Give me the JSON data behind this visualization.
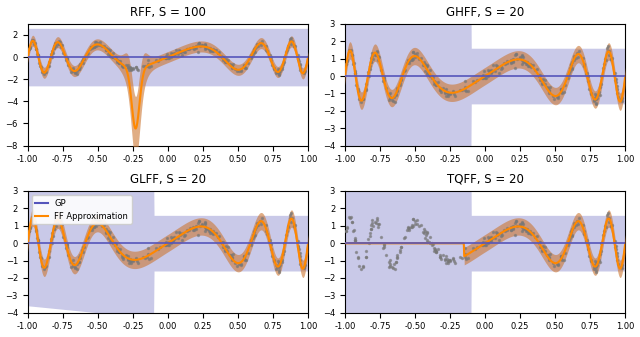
{
  "titles": [
    "RFF, S = 100",
    "GHFF, S = 20",
    "GLFF, S = 20",
    "TQFF, S = 20"
  ],
  "gp_color": "#5555bb",
  "ff_color": "#ff8800",
  "gp_fill_color": "#8888cc",
  "ff_fill_color": "#cc7733",
  "data_color": "#777777",
  "legend_labels": [
    "GP",
    "FF Approximation"
  ],
  "xlim": [
    -1.0,
    1.0
  ],
  "xticks": [
    -1.0,
    -0.75,
    -0.5,
    -0.25,
    0.0,
    0.25,
    0.5,
    0.75,
    1.0
  ],
  "ylim_rff": [
    -8,
    3
  ],
  "ylim_others": [
    -4,
    3
  ],
  "figsize": [
    6.4,
    3.37
  ],
  "dpi": 100
}
